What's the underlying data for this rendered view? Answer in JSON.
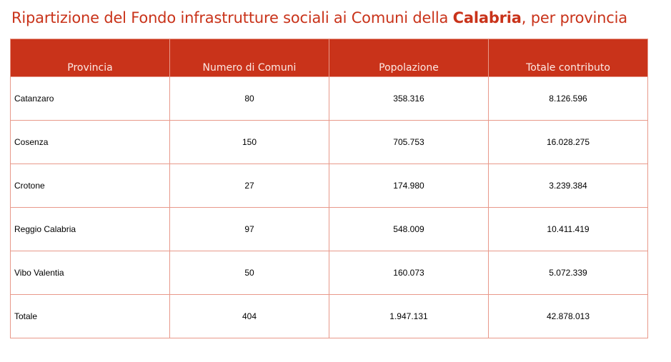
{
  "title": {
    "prefix": "Ripartizione del Fondo infrastrutture sociali ai Comuni della ",
    "bold": "Calabria",
    "suffix": ", per provincia"
  },
  "colors": {
    "accent": "#c9331a",
    "border": "#e8998a"
  },
  "table": {
    "headers": [
      "Provincia",
      "Numero di Comuni",
      "Popolazione",
      "Totale contributo"
    ],
    "rows": [
      [
        "Catanzaro",
        "80",
        "358.316",
        "8.126.596"
      ],
      [
        "Cosenza",
        "150",
        "705.753",
        "16.028.275"
      ],
      [
        "Crotone",
        "27",
        "174.980",
        "3.239.384"
      ],
      [
        "Reggio Calabria",
        "97",
        "548.009",
        "10.411.419"
      ],
      [
        "Vibo Valentia",
        "50",
        "160.073",
        "5.072.339"
      ],
      [
        "Totale",
        "404",
        "1.947.131",
        "42.878.013"
      ]
    ]
  }
}
